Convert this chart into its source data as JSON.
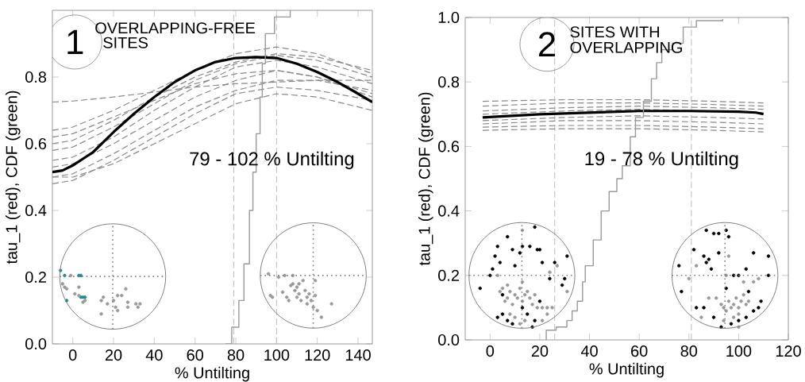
{
  "chart_data": [
    {
      "type": "line",
      "xlabel": "% Untilting",
      "ylabel": "tau_1  (red),  CDF  (green)",
      "xlim": [
        -10,
        147
      ],
      "ylim": [
        0,
        1.0
      ],
      "xticks": [
        0,
        20,
        40,
        60,
        80,
        100,
        120,
        140
      ],
      "yticks": [
        {
          "value": 0,
          "label": "0.0"
        },
        {
          "value": 0.2,
          "label": "0.2"
        },
        {
          "value": 0.4,
          "label": "0.4"
        },
        {
          "value": 0.6,
          "label": "0.6"
        },
        {
          "value": 0.8,
          "label": "0.8"
        }
      ],
      "annotations": [
        "1",
        "OVERLAPPING-FREE",
        "SITES",
        "79 - 102 % Untilting"
      ],
      "ref_lines": [
        {
          "axis": "x",
          "value": 79,
          "color": "#bbbbbb",
          "line_style": "dashed"
        },
        {
          "axis": "x",
          "value": 100,
          "color": "#bbbbbb",
          "line_style": "dashed"
        }
      ],
      "series": [
        {
          "line_style": "dashed",
          "color": "#888888",
          "x": [
            -10,
            0,
            20,
            40,
            60,
            80,
            100,
            120,
            147
          ],
          "values": [
            0.725,
            0.728,
            0.74,
            0.755,
            0.77,
            0.78,
            0.785,
            0.79,
            0.79
          ]
        },
        {
          "line_style": "dashed",
          "color": "#888888",
          "x": [
            -10,
            0,
            20,
            40,
            60,
            80,
            100,
            120,
            147
          ],
          "values": [
            0.6,
            0.61,
            0.67,
            0.74,
            0.8,
            0.845,
            0.87,
            0.86,
            0.82
          ]
        },
        {
          "line_style": "dashed",
          "color": "#888888",
          "x": [
            -10,
            0,
            20,
            40,
            60,
            80,
            100,
            120,
            147
          ],
          "values": [
            0.58,
            0.59,
            0.65,
            0.72,
            0.79,
            0.84,
            0.865,
            0.85,
            0.8
          ]
        },
        {
          "line_style": "dashed",
          "color": "#888888",
          "x": [
            -10,
            0,
            20,
            40,
            60,
            80,
            100,
            120,
            147
          ],
          "values": [
            0.5,
            0.51,
            0.57,
            0.64,
            0.71,
            0.76,
            0.79,
            0.79,
            0.76
          ]
        },
        {
          "line_style": "dashed",
          "color": "#888888",
          "x": [
            -10,
            0,
            20,
            40,
            60,
            80,
            100,
            120,
            147
          ],
          "values": [
            0.48,
            0.49,
            0.55,
            0.62,
            0.69,
            0.75,
            0.77,
            0.76,
            0.73
          ]
        },
        {
          "line_style": "dashed",
          "color": "#888888",
          "x": [
            -10,
            0,
            20,
            40,
            60,
            80,
            100,
            120,
            147
          ],
          "values": [
            0.55,
            0.56,
            0.62,
            0.7,
            0.77,
            0.83,
            0.85,
            0.83,
            0.78
          ]
        },
        {
          "line_style": "dashed",
          "color": "#888888",
          "x": [
            -10,
            0,
            20,
            40,
            60,
            80,
            100,
            120,
            147
          ],
          "values": [
            0.64,
            0.65,
            0.7,
            0.76,
            0.82,
            0.87,
            0.89,
            0.87,
            0.81
          ]
        },
        {
          "line_style": "dashed",
          "color": "#888888",
          "x": [
            -10,
            0,
            20,
            40,
            60,
            80,
            100,
            120,
            147
          ],
          "values": [
            0.53,
            0.54,
            0.6,
            0.67,
            0.74,
            0.79,
            0.82,
            0.8,
            0.74
          ]
        },
        {
          "line_style": "dashed",
          "color": "#888888",
          "x": [
            -10,
            0,
            20,
            40,
            60,
            80,
            100,
            120,
            147
          ],
          "values": [
            0.62,
            0.63,
            0.68,
            0.73,
            0.78,
            0.81,
            0.82,
            0.8,
            0.75
          ]
        },
        {
          "line_style": "dashed",
          "color": "#888888",
          "x": [
            -10,
            0,
            20,
            40,
            60,
            80,
            100,
            120,
            147
          ],
          "values": [
            0.5,
            0.5,
            0.54,
            0.6,
            0.66,
            0.72,
            0.75,
            0.74,
            0.7
          ]
        },
        {
          "line_style": "solid",
          "color": "#000000",
          "x": [
            -10,
            -5,
            0,
            10,
            20,
            30,
            40,
            50,
            60,
            70,
            80,
            90,
            100,
            110,
            120,
            130,
            140,
            147
          ],
          "values": [
            0.515,
            0.52,
            0.535,
            0.575,
            0.635,
            0.69,
            0.74,
            0.785,
            0.82,
            0.845,
            0.857,
            0.86,
            0.857,
            0.84,
            0.815,
            0.785,
            0.75,
            0.725
          ]
        },
        {
          "type": "step",
          "color": "#999999",
          "x": [
            75,
            78,
            81.5,
            84,
            86.7,
            88.4,
            90,
            91.9,
            93,
            94.5,
            99,
            106.7
          ],
          "values": [
            0,
            0.05,
            0.13,
            0.24,
            0.4,
            0.515,
            0.63,
            0.74,
            0.84,
            0.93,
            0.98,
            1.0
          ]
        },
        {
          "type": "scatter",
          "color": "#1a8c8c",
          "x": [
            -6,
            -4,
            -3,
            3,
            4,
            4,
            6,
            5
          ],
          "values": [
            0.22,
            0.205,
            0.13,
            0.205,
            0.205,
            0.14,
            0.14,
            0.14
          ]
        },
        {
          "type": "scatter",
          "color": "#999999",
          "x": [
            -5,
            -4,
            -3,
            -1,
            1,
            3,
            3,
            5,
            6,
            14,
            15,
            17,
            14,
            20,
            21,
            22,
            22,
            24,
            26,
            27,
            27,
            31,
            32,
            33
          ],
          "values": [
            0.18,
            0.17,
            0.165,
            0.205,
            0.15,
            0.17,
            0.145,
            0.125,
            0.13,
            0.13,
            0.14,
            0.12,
            0.09,
            0.13,
            0.11,
            0.1,
            0.145,
            0.145,
            0.165,
            0.125,
            0.11,
            0.12,
            0.11,
            0.12
          ]
        },
        {
          "type": "scatter",
          "color": "#999999",
          "x": [
            96,
            97,
            98,
            101,
            103,
            105,
            106,
            107,
            108,
            109,
            110,
            110,
            111,
            111,
            112,
            113,
            114,
            115,
            115,
            116,
            117,
            118,
            119,
            119,
            120,
            122,
            127,
            108,
            104
          ],
          "values": [
            0.21,
            0.145,
            0.14,
            0.2,
            0.155,
            0.14,
            0.13,
            0.175,
            0.18,
            0.16,
            0.17,
            0.14,
            0.15,
            0.18,
            0.13,
            0.19,
            0.16,
            0.14,
            0.12,
            0.15,
            0.13,
            0.11,
            0.19,
            0.145,
            0.1,
            0.08,
            0.12,
            0.205,
            0.205
          ]
        }
      ]
    },
    {
      "type": "line",
      "xlabel": "% Untilting",
      "ylabel": "tau_1  (red),  CDF  (green)",
      "xlim": [
        -10,
        120
      ],
      "ylim": [
        0,
        1.0
      ],
      "xticks": [
        0,
        20,
        40,
        60,
        80,
        100,
        120
      ],
      "yticks": [
        {
          "value": 0,
          "label": "0.0"
        },
        {
          "value": 0.2,
          "label": "0.2"
        },
        {
          "value": 0.4,
          "label": "0.4"
        },
        {
          "value": 0.6,
          "label": "0.6"
        },
        {
          "value": 0.8,
          "label": "0.8"
        },
        {
          "value": 1.0,
          "label": "1.0"
        }
      ],
      "annotations": [
        "2",
        "SITES WITH",
        "OVERLAPPING",
        "19 - 78 % Untilting"
      ],
      "ref_lines": [
        {
          "axis": "x",
          "value": 26,
          "color": "#bbbbbb",
          "line_style": "dashed"
        },
        {
          "axis": "x",
          "value": 81,
          "color": "#bbbbbb",
          "line_style": "dashed"
        }
      ],
      "series": [
        {
          "line_style": "dashed",
          "color": "#888888",
          "x": [
            -3,
            30,
            60,
            90,
            110
          ],
          "values": [
            0.74,
            0.745,
            0.745,
            0.74,
            0.735
          ]
        },
        {
          "line_style": "dashed",
          "color": "#888888",
          "x": [
            -3,
            30,
            60,
            90,
            110
          ],
          "values": [
            0.725,
            0.735,
            0.735,
            0.73,
            0.725
          ]
        },
        {
          "line_style": "dashed",
          "color": "#888888",
          "x": [
            -3,
            30,
            60,
            90,
            110
          ],
          "values": [
            0.71,
            0.72,
            0.725,
            0.72,
            0.715
          ]
        },
        {
          "line_style": "dashed",
          "color": "#888888",
          "x": [
            -3,
            30,
            60,
            90,
            110
          ],
          "values": [
            0.7,
            0.71,
            0.715,
            0.71,
            0.705
          ]
        },
        {
          "line_style": "dashed",
          "color": "#888888",
          "x": [
            -3,
            30,
            60,
            90,
            110
          ],
          "values": [
            0.68,
            0.69,
            0.695,
            0.69,
            0.685
          ]
        },
        {
          "line_style": "dashed",
          "color": "#888888",
          "x": [
            -3,
            30,
            60,
            90,
            110
          ],
          "values": [
            0.67,
            0.68,
            0.68,
            0.675,
            0.67
          ]
        },
        {
          "line_style": "dashed",
          "color": "#888888",
          "x": [
            -3,
            30,
            60,
            90,
            110
          ],
          "values": [
            0.66,
            0.665,
            0.665,
            0.66,
            0.655
          ]
        },
        {
          "line_style": "dashed",
          "color": "#888888",
          "x": [
            -3,
            30,
            60,
            90,
            110
          ],
          "values": [
            0.65,
            0.655,
            0.655,
            0.65,
            0.645
          ]
        },
        {
          "line_style": "solid",
          "color": "#000000",
          "x": [
            -3,
            20,
            40,
            60,
            80,
            100,
            107,
            110
          ],
          "values": [
            0.69,
            0.7,
            0.705,
            0.71,
            0.71,
            0.708,
            0.705,
            0.7
          ]
        },
        {
          "type": "step",
          "color": "#999999",
          "x": [
            22.3,
            22.6,
            26.6,
            30.9,
            33,
            35.1,
            37.2,
            38.3,
            41.5,
            44.7,
            47.9,
            51,
            53.2,
            56.4,
            58.5,
            61.7,
            64.9,
            67,
            69.1,
            73.4,
            77.7,
            83,
            93.6
          ],
          "values": [
            0,
            0.03,
            0.04,
            0.06,
            0.09,
            0.12,
            0.18,
            0.23,
            0.31,
            0.4,
            0.46,
            0.5,
            0.54,
            0.63,
            0.69,
            0.74,
            0.81,
            0.86,
            0.9,
            0.92,
            0.97,
            0.99,
            0.995
          ]
        },
        {
          "type": "scatter",
          "color": "#999999",
          "x": [
            4,
            5,
            6,
            7,
            8,
            9,
            10,
            11,
            12,
            13,
            14,
            15,
            16,
            17,
            18,
            19,
            21,
            23,
            25,
            8,
            10,
            12,
            14,
            21,
            23,
            24,
            27,
            31,
            3,
            13,
            13,
            7
          ],
          "values": [
            0.15,
            0.16,
            0.12,
            0.13,
            0.15,
            0.11,
            0.14,
            0.13,
            0.16,
            0.12,
            0.14,
            0.15,
            0.13,
            0.11,
            0.14,
            0.1,
            0.1,
            0.1,
            0.1,
            0.08,
            0.07,
            0.05,
            0.06,
            0.06,
            0.08,
            0.21,
            0.23,
            0.15,
            0.2,
            0.34,
            0.18,
            0.17
          ]
        },
        {
          "type": "scatter",
          "color": "#000000",
          "x": [
            -4,
            0,
            1,
            2,
            3,
            4,
            7,
            9,
            10,
            12,
            13,
            16,
            18,
            19,
            20,
            21,
            24,
            26,
            29,
            30,
            31,
            20,
            3,
            5,
            7,
            9,
            13,
            15,
            18,
            17,
            5
          ],
          "values": [
            0.16,
            0.2,
            0.22,
            0.26,
            0.29,
            0.24,
            0.32,
            0.28,
            0.23,
            0.27,
            0.29,
            0.29,
            0.35,
            0.28,
            0.28,
            0.24,
            0.19,
            0.24,
            0.17,
            0.19,
            0.26,
            0.12,
            0.07,
            0.08,
            0.06,
            0.05,
            0.1,
            0.08,
            0.06,
            0.04,
            0.14
          ]
        },
        {
          "type": "scatter",
          "color": "#999999",
          "x": [
            91,
            93,
            94,
            95,
            96,
            97,
            98,
            99,
            100,
            101,
            102,
            103,
            104,
            100,
            98,
            95,
            96,
            83,
            80,
            102,
            106,
            108,
            85,
            94,
            100,
            88
          ],
          "values": [
            0.13,
            0.11,
            0.1,
            0.09,
            0.12,
            0.1,
            0.11,
            0.13,
            0.1,
            0.12,
            0.14,
            0.11,
            0.12,
            0.08,
            0.07,
            0.2,
            0.26,
            0.23,
            0.19,
            0.18,
            0.18,
            0.19,
            0.07,
            0.06,
            0.04,
            0.13
          ]
        },
        {
          "type": "scatter",
          "color": "#000000",
          "x": [
            76,
            77,
            82,
            83,
            86,
            87,
            88,
            89,
            87,
            90,
            92,
            95,
            96,
            92,
            98,
            100,
            103,
            104,
            106,
            112,
            112,
            90,
            93,
            97,
            100,
            103,
            106,
            108,
            109,
            95,
            86
          ],
          "values": [
            0.23,
            0.15,
            0.28,
            0.1,
            0.26,
            0.24,
            0.25,
            0.22,
            0.34,
            0.33,
            0.33,
            0.34,
            0.32,
            0.27,
            0.2,
            0.2,
            0.22,
            0.15,
            0.27,
            0.26,
            0.2,
            0.07,
            0.04,
            0.05,
            0.06,
            0.07,
            0.09,
            0.1,
            0.12,
            0.16,
            0.1
          ]
        }
      ]
    }
  ]
}
